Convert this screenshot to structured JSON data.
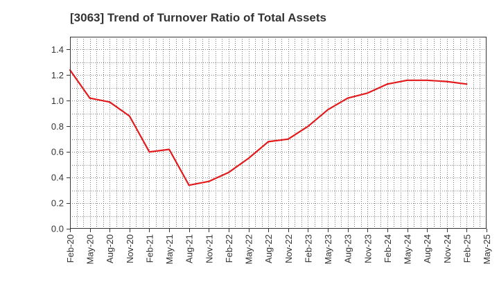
{
  "chart_data": {
    "type": "line",
    "title": "[3063]  Trend of Turnover Ratio of Total Assets",
    "xlabel": "",
    "ylabel": "",
    "ylim": [
      0,
      1.5
    ],
    "yticks": [
      "0.0",
      "0.2",
      "0.4",
      "0.6",
      "0.8",
      "1.0",
      "1.2",
      "1.4"
    ],
    "xtick_labels": [
      "Feb-20",
      "May-20",
      "Aug-20",
      "Nov-20",
      "Feb-21",
      "May-21",
      "Aug-21",
      "Nov-21",
      "Feb-22",
      "May-22",
      "Aug-22",
      "Nov-22",
      "Feb-23",
      "May-23",
      "Aug-23",
      "Nov-23",
      "Feb-24",
      "May-24",
      "Aug-24",
      "Nov-24",
      "Feb-25",
      "May-25"
    ],
    "grid": true,
    "legend": "none",
    "series": [
      {
        "color": "#e31a1c",
        "x": [
          "Feb-20",
          "May-20",
          "Aug-20",
          "Nov-20",
          "Feb-21",
          "May-21",
          "Aug-21",
          "Nov-21",
          "Feb-22",
          "May-22",
          "Aug-22",
          "Nov-22",
          "Feb-23",
          "May-23",
          "Aug-23",
          "Nov-23",
          "Feb-24",
          "May-24",
          "Aug-24",
          "Nov-24",
          "Feb-25"
        ],
        "values": [
          1.24,
          1.02,
          0.99,
          0.88,
          0.6,
          0.62,
          0.34,
          0.37,
          0.44,
          0.55,
          0.68,
          0.7,
          0.8,
          0.93,
          1.02,
          1.06,
          1.13,
          1.16,
          1.16,
          1.15,
          1.13
        ]
      }
    ]
  }
}
